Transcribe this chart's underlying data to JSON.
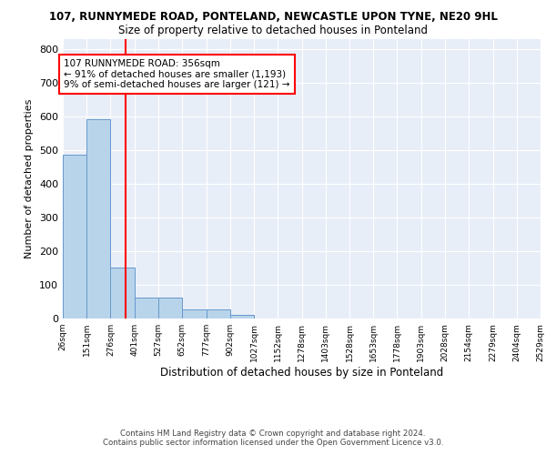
{
  "title1": "107, RUNNYMEDE ROAD, PONTELAND, NEWCASTLE UPON TYNE, NE20 9HL",
  "title2": "Size of property relative to detached houses in Ponteland",
  "xlabel": "Distribution of detached houses by size in Ponteland",
  "ylabel": "Number of detached properties",
  "bar_left_edges": [
    26,
    151,
    276,
    401,
    527,
    652,
    777,
    902,
    1027,
    1152,
    1278,
    1403,
    1528,
    1653,
    1778,
    1903,
    2028,
    2154,
    2279,
    2404
  ],
  "bar_widths": [
    125,
    125,
    125,
    126,
    125,
    125,
    125,
    125,
    125,
    126,
    125,
    125,
    125,
    125,
    125,
    125,
    126,
    125,
    125,
    125
  ],
  "bar_heights": [
    487,
    590,
    150,
    63,
    63,
    28,
    28,
    10,
    0,
    0,
    0,
    0,
    0,
    0,
    0,
    0,
    0,
    0,
    0,
    0
  ],
  "x_tick_labels": [
    "26sqm",
    "151sqm",
    "276sqm",
    "401sqm",
    "527sqm",
    "652sqm",
    "777sqm",
    "902sqm",
    "1027sqm",
    "1152sqm",
    "1278sqm",
    "1403sqm",
    "1528sqm",
    "1653sqm",
    "1778sqm",
    "1903sqm",
    "2028sqm",
    "2154sqm",
    "2279sqm",
    "2404sqm",
    "2529sqm"
  ],
  "x_tick_positions": [
    26,
    151,
    276,
    401,
    527,
    652,
    777,
    902,
    1027,
    1152,
    1278,
    1403,
    1528,
    1653,
    1778,
    1903,
    2028,
    2154,
    2279,
    2404,
    2529
  ],
  "bar_color": "#b8d4ea",
  "bar_edge_color": "#6699cc",
  "red_line_x": 356,
  "annotation_line1": "107 RUNNYMEDE ROAD: 356sqm",
  "annotation_line2": "← 91% of detached houses are smaller (1,193)",
  "annotation_line3": "9% of semi-detached houses are larger (121) →",
  "ylim": [
    0,
    830
  ],
  "yticks": [
    0,
    100,
    200,
    300,
    400,
    500,
    600,
    700,
    800
  ],
  "xlim_min": 26,
  "xlim_max": 2529,
  "background_color": "#e8eef8",
  "footer_line1": "Contains HM Land Registry data © Crown copyright and database right 2024.",
  "footer_line2": "Contains public sector information licensed under the Open Government Licence v3.0."
}
